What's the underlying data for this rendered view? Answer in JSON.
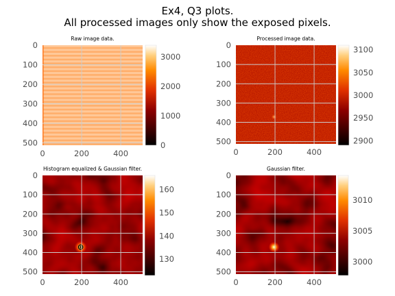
{
  "figure": {
    "title_line1": "Ex4, Q3 plots.",
    "title_line2": "All processed images only show the exposed pixels."
  },
  "chart_data": [
    {
      "type": "heatmap",
      "title": "Raw image data.",
      "xlabel": "",
      "ylabel": "",
      "xlim": [
        0,
        512
      ],
      "ylim": [
        512,
        0
      ],
      "xticks": [
        "0",
        "200",
        "400"
      ],
      "yticks": [
        "0",
        "100",
        "200",
        "300",
        "400",
        "500"
      ],
      "colormap": "gist_heat",
      "colorbar": {
        "range": [
          0,
          3400
        ],
        "ticks": [
          "0",
          "1000",
          "2000",
          "3000"
        ]
      },
      "pattern": "horizontal-stripes",
      "grid": true,
      "hotspot": null
    },
    {
      "type": "heatmap",
      "title": "Processed image data.",
      "xlabel": "",
      "ylabel": "",
      "xlim": [
        0,
        512
      ],
      "ylim": [
        512,
        0
      ],
      "xticks": [
        "0",
        "200",
        "400"
      ],
      "yticks": [
        "0",
        "100",
        "200",
        "300",
        "400",
        "500"
      ],
      "colormap": "gist_heat",
      "colorbar": {
        "range": [
          2890,
          3110
        ],
        "ticks": [
          "2900",
          "2950",
          "3000",
          "3050",
          "3100"
        ]
      },
      "pattern": "noise",
      "grid": true,
      "hotspot": {
        "x": 195,
        "y": 372
      }
    },
    {
      "type": "heatmap",
      "title": "Histogram equalized & Gaussian filter.",
      "xlabel": "",
      "ylabel": "",
      "xlim": [
        0,
        512
      ],
      "ylim": [
        512,
        0
      ],
      "xticks": [
        "0",
        "200",
        "400"
      ],
      "yticks": [
        "0",
        "100",
        "200",
        "300",
        "400",
        "500"
      ],
      "colormap": "gist_heat",
      "colorbar": {
        "range": [
          123,
          166
        ],
        "ticks": [
          "130",
          "140",
          "150",
          "160"
        ]
      },
      "pattern": "smooth-blobs",
      "grid": true,
      "hotspot": {
        "x": 195,
        "y": 372
      }
    },
    {
      "type": "heatmap",
      "title": "Gaussian filter.",
      "xlabel": "",
      "ylabel": "",
      "xlim": [
        0,
        512
      ],
      "ylim": [
        512,
        0
      ],
      "xticks": [
        "0",
        "200",
        "400"
      ],
      "yticks": [
        "0",
        "100",
        "200",
        "300",
        "400",
        "500"
      ],
      "colormap": "gist_heat",
      "colorbar": {
        "range": [
          2997.8,
          3014
        ],
        "ticks": [
          "3000",
          "3005",
          "3010"
        ]
      },
      "pattern": "smooth-blobs",
      "grid": true,
      "hotspot": {
        "x": 195,
        "y": 372
      }
    }
  ]
}
